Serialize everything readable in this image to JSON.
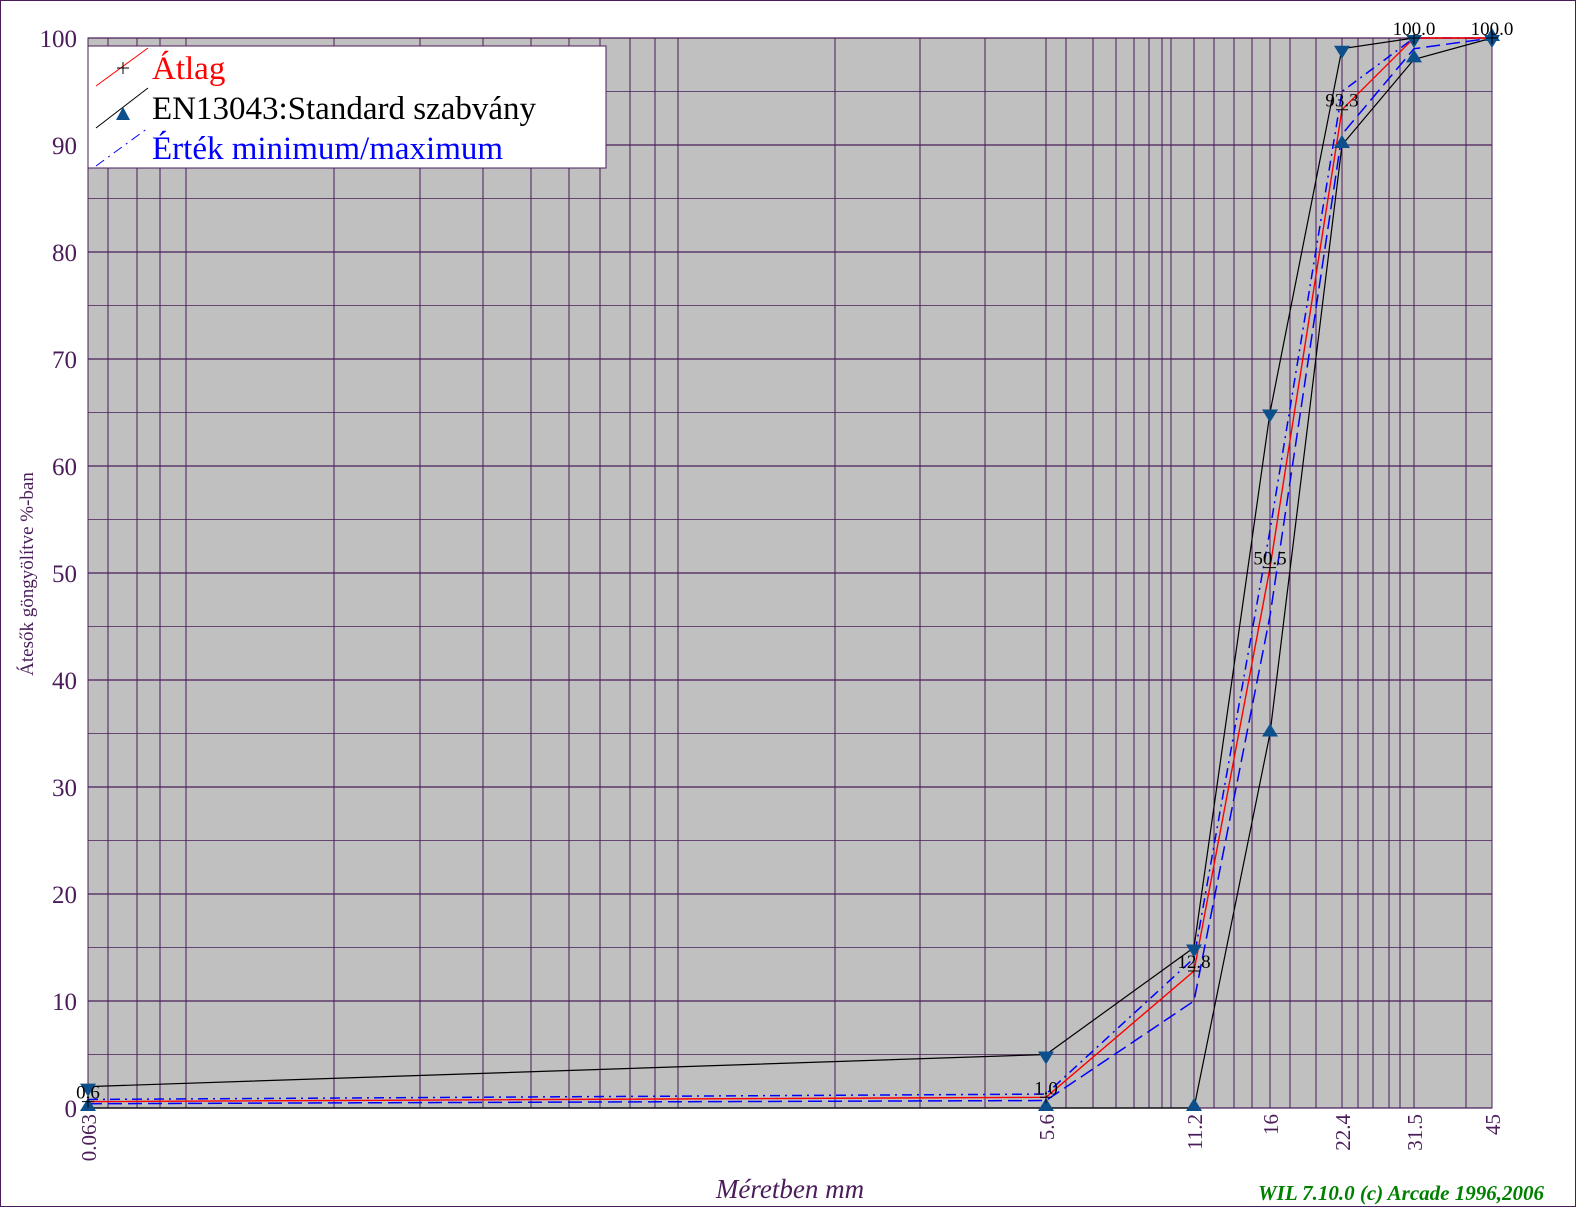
{
  "chart_data": {
    "type": "line",
    "xlabel": "Méretben mm",
    "ylabel": "Átesők göngyölítve %-ban",
    "credit": "WIL 7.10.0 (c) Arcade 1996,2006",
    "x_ticks": [
      "0.063",
      "5.6",
      "11.2",
      "16",
      "22.4",
      "31.5",
      "45"
    ],
    "y_ticks": [
      "0",
      "10",
      "20",
      "30",
      "40",
      "50",
      "60",
      "70",
      "80",
      "90",
      "100"
    ],
    "ylim": [
      0,
      100
    ],
    "grid": true,
    "legend_position": "top-left",
    "series": [
      {
        "name": "Átlag",
        "color": "#ff0000",
        "style": "solid",
        "marker": "plus",
        "values": [
          0.6,
          1.0,
          12.8,
          50.5,
          93.3,
          100.0,
          100.0
        ],
        "labels": [
          "0.6",
          "1.0",
          "12.8",
          "50.5",
          "93.3",
          "100.0",
          "100.0"
        ]
      },
      {
        "name": "EN13043:Standard szabvány",
        "color": "#000000",
        "marker_color": "#0d4f8b",
        "style": "solid",
        "marker": "triangle",
        "upper": [
          2,
          5,
          15,
          65,
          99,
          100,
          100
        ],
        "lower": [
          0,
          0,
          0,
          35,
          90,
          98,
          100
        ]
      },
      {
        "name": "Érték minimum/maximum",
        "color": "#0000ff",
        "style": "dashed",
        "marker": "none",
        "upper": [
          0.8,
          1.3,
          14,
          54,
          95,
          100,
          100
        ],
        "lower": [
          0.4,
          0.7,
          10,
          46,
          91,
          99,
          100
        ]
      }
    ]
  }
}
